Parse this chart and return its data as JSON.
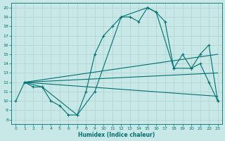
{
  "xlabel": "Humidex (Indice chaleur)",
  "bg_color": "#c8e8e8",
  "line_color": "#007070",
  "grid_color": "#b0d0d0",
  "xlim": [
    -0.5,
    23.5
  ],
  "ylim": [
    7.5,
    20.5
  ],
  "xticks": [
    0,
    1,
    2,
    3,
    4,
    5,
    6,
    7,
    8,
    9,
    10,
    11,
    12,
    13,
    14,
    15,
    16,
    17,
    18,
    19,
    20,
    21,
    22,
    23
  ],
  "yticks": [
    8,
    9,
    10,
    11,
    12,
    13,
    14,
    15,
    16,
    17,
    18,
    19,
    20
  ],
  "lines": [
    {
      "x": [
        0,
        1,
        2,
        3,
        4,
        5,
        6,
        7,
        8,
        9,
        10,
        11,
        12,
        13,
        14,
        15,
        16,
        17,
        18,
        19,
        20,
        21,
        22,
        23
      ],
      "y": [
        10,
        12,
        11.5,
        11.5,
        10,
        9.5,
        8.5,
        8.5,
        11,
        15,
        17,
        18,
        19,
        19,
        18.5,
        20,
        19.5,
        18.5,
        13.5,
        15,
        13.5,
        14,
        12,
        10
      ]
    },
    {
      "x": [
        1,
        3,
        7,
        9,
        12,
        15,
        16,
        18,
        20,
        21,
        22,
        23
      ],
      "y": [
        12,
        11.5,
        8.5,
        11,
        19,
        20,
        19.5,
        13.5,
        13.5,
        15,
        16,
        10
      ]
    },
    {
      "x": [
        1,
        23
      ],
      "y": [
        12,
        15
      ]
    },
    {
      "x": [
        1,
        23
      ],
      "y": [
        12,
        13
      ]
    },
    {
      "x": [
        1,
        23
      ],
      "y": [
        12,
        10.5
      ]
    }
  ]
}
